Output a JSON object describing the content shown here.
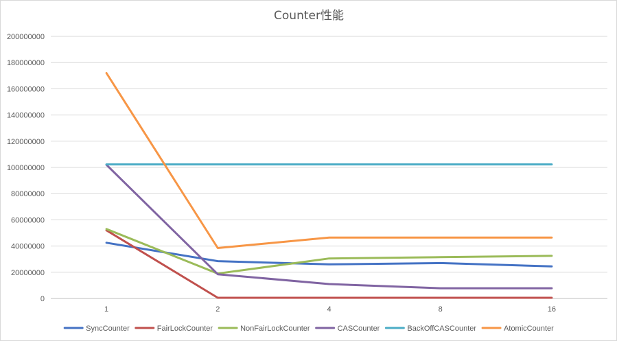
{
  "chart_data": {
    "type": "line",
    "title": "Counter性能",
    "xlabel": "",
    "ylabel": "",
    "categories": [
      "1",
      "2",
      "4",
      "8",
      "16"
    ],
    "ylim": [
      0,
      200000000
    ],
    "yticks": [
      0,
      20000000,
      40000000,
      60000000,
      80000000,
      100000000,
      120000000,
      140000000,
      160000000,
      180000000,
      200000000
    ],
    "ytick_labels": [
      "0",
      "20000000",
      "40000000",
      "60000000",
      "80000000",
      "100000000",
      "120000000",
      "140000000",
      "160000000",
      "180000000",
      "200000000"
    ],
    "grid": true,
    "legend_position": "bottom",
    "series": [
      {
        "name": "SyncCounter",
        "color": "#4472C4",
        "values": [
          42500000,
          28500000,
          26000000,
          27000000,
          24500000
        ]
      },
      {
        "name": "FairLockCounter",
        "color": "#C0504D",
        "values": [
          52000000,
          500000,
          500000,
          500000,
          500000
        ]
      },
      {
        "name": "NonFairLockCounter",
        "color": "#9BBB59",
        "values": [
          53000000,
          19000000,
          30500000,
          31500000,
          32500000
        ]
      },
      {
        "name": "CASCounter",
        "color": "#8064A2",
        "values": [
          102000000,
          18500000,
          11000000,
          7800000,
          7800000
        ]
      },
      {
        "name": "BackOffCASCounter",
        "color": "#4BACC6",
        "values": [
          102300000,
          102300000,
          102300000,
          102300000,
          102300000
        ]
      },
      {
        "name": "AtomicCounter",
        "color": "#F79646",
        "values": [
          172000000,
          38500000,
          46500000,
          46500000,
          46500000
        ]
      }
    ]
  }
}
